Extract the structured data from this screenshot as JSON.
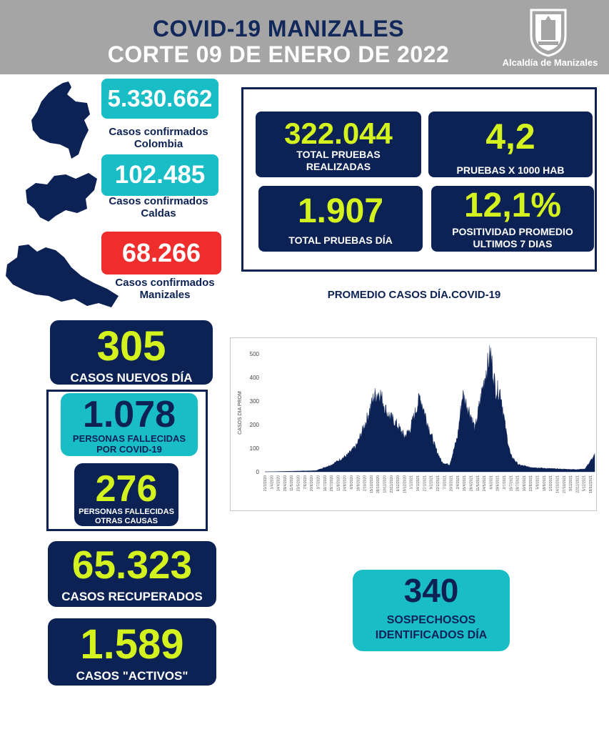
{
  "header": {
    "title_line1": "COVID-19 MANIZALES",
    "title_line2": "CORTE 09 DE ENERO DE 2022",
    "org": "Alcaldía de Manizales"
  },
  "colombia": {
    "value": "5.330.662",
    "label_line1": "Casos confirmados",
    "label_line2": "Colombia"
  },
  "caldas": {
    "value": "102.485",
    "label_line1": "Casos confirmados",
    "label_line2": "Caldas"
  },
  "manizales": {
    "value": "68.266",
    "label_line1": "Casos confirmados",
    "label_line2": "Manizales"
  },
  "tests": {
    "total_value": "322.044",
    "total_label_line1": "TOTAL PRUEBAS",
    "total_label_line2": "REALIZADAS",
    "per1000_value": "4,2",
    "per1000_label": "PRUEBAS X 1000 HAB",
    "daily_value": "1.907",
    "daily_label": "TOTAL PRUEBAS DÍA",
    "positivity_value": "12,1%",
    "positivity_label_line1": "POSITIVIDAD PROMEDIO",
    "positivity_label_line2": "ULTIMOS 7 DIAS"
  },
  "new_cases": {
    "value": "305",
    "label": "CASOS NUEVOS DÍA"
  },
  "deaths_covid": {
    "value": "1.078",
    "label_line1": "PERSONAS FALLECIDAS",
    "label_line2": "POR COVID-19"
  },
  "deaths_other": {
    "value": "276",
    "label_line1": "PERSONAS FALLECIDAS",
    "label_line2": "OTRAS CAUSAS"
  },
  "recovered": {
    "value": "65.323",
    "label": "CASOS RECUPERADOS"
  },
  "active": {
    "value": "1.589",
    "label": "CASOS \"ACTIVOS\""
  },
  "suspected": {
    "value": "340",
    "label_line1": "SOSPECHOSOS",
    "label_line2": "IDENTIFICADOS DÍA"
  },
  "colors": {
    "navy": "#0d2254",
    "cyan": "#19bdc6",
    "red": "#ef2d2d",
    "lime": "#d4f21e",
    "header_gray": "#a5a5a5"
  },
  "chart_title": "PROMEDIO CASOS DÍA.COVID-19",
  "chart_data": {
    "type": "area",
    "ylabel": "CASOS DIA PROM",
    "ylim": [
      0,
      500
    ],
    "yticks": [
      "0",
      "100",
      "200",
      "300",
      "400",
      "500"
    ],
    "xticks": [
      "21/3/2020",
      "1/4/2020",
      "14/4/2020",
      "29/4/2020",
      "11/5/2020",
      "23/5/2020",
      "7/6/2020",
      "20/6/2020",
      "3/7/2020",
      "16/7/2020",
      "29/7/2020",
      "11/8/2020",
      "24/8/2020",
      "6/9/2020",
      "19/9/2020",
      "2/10/2020",
      "15/10/2020",
      "28/10/2020",
      "10/11/2020",
      "23/11/2020",
      "6/12/2020",
      "19/12/2020",
      "1/1/2021",
      "14/1/2021",
      "27/1/2021",
      "9/2/2021",
      "22/2/2021",
      "7/3/2021",
      "20/3/2021",
      "2/4/2021",
      "15/4/2021",
      "28/4/2021",
      "11/5/2021",
      "24/5/2021",
      "6/6/2021",
      "19/6/2021",
      "2/7/2021",
      "15/7/2021",
      "28/7/2021",
      "10/8/2021",
      "23/8/2021",
      "5/9/2021",
      "18/9/2021",
      "1/10/2021",
      "14/10/2021",
      "27/10/2021",
      "9/11/2021",
      "22/11/2021",
      "5/12/2021",
      "18/12/2021"
    ],
    "x": [
      "2020-03-21",
      "2020-05-01",
      "2020-07-01",
      "2020-08-01",
      "2020-09-01",
      "2020-09-20",
      "2020-10-10",
      "2020-10-25",
      "2020-11-05",
      "2020-11-20",
      "2020-12-10",
      "2020-12-25",
      "2021-01-05",
      "2021-01-15",
      "2021-01-25",
      "2021-02-10",
      "2021-02-25",
      "2021-03-10",
      "2021-03-25",
      "2021-04-10",
      "2021-04-20",
      "2021-05-05",
      "2021-05-15",
      "2021-05-25",
      "2021-06-05",
      "2021-06-15",
      "2021-06-25",
      "2021-07-05",
      "2021-07-15",
      "2021-07-25",
      "2021-08-10",
      "2021-09-01",
      "2021-10-01",
      "2021-11-01",
      "2021-12-01",
      "2021-12-20",
      "2022-01-09"
    ],
    "y": [
      0,
      2,
      5,
      30,
      70,
      110,
      220,
      320,
      340,
      250,
      200,
      150,
      180,
      250,
      320,
      200,
      100,
      40,
      30,
      150,
      330,
      250,
      180,
      300,
      420,
      500,
      350,
      340,
      180,
      70,
      30,
      20,
      15,
      12,
      10,
      12,
      70
    ]
  }
}
